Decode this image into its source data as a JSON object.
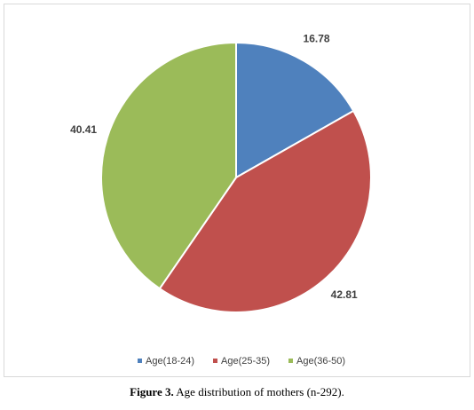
{
  "chart_data": {
    "type": "pie",
    "categories": [
      "Age(18-24)",
      "Age(25-35)",
      "Age(36-50)"
    ],
    "values": [
      16.78,
      42.81,
      40.41
    ],
    "colors": [
      "#4f81bd",
      "#c0504d",
      "#9bbb59"
    ],
    "legend": "bottom"
  },
  "caption": {
    "label": "Figure 3.",
    "text": "Age distribution of mothers (n-292)."
  }
}
